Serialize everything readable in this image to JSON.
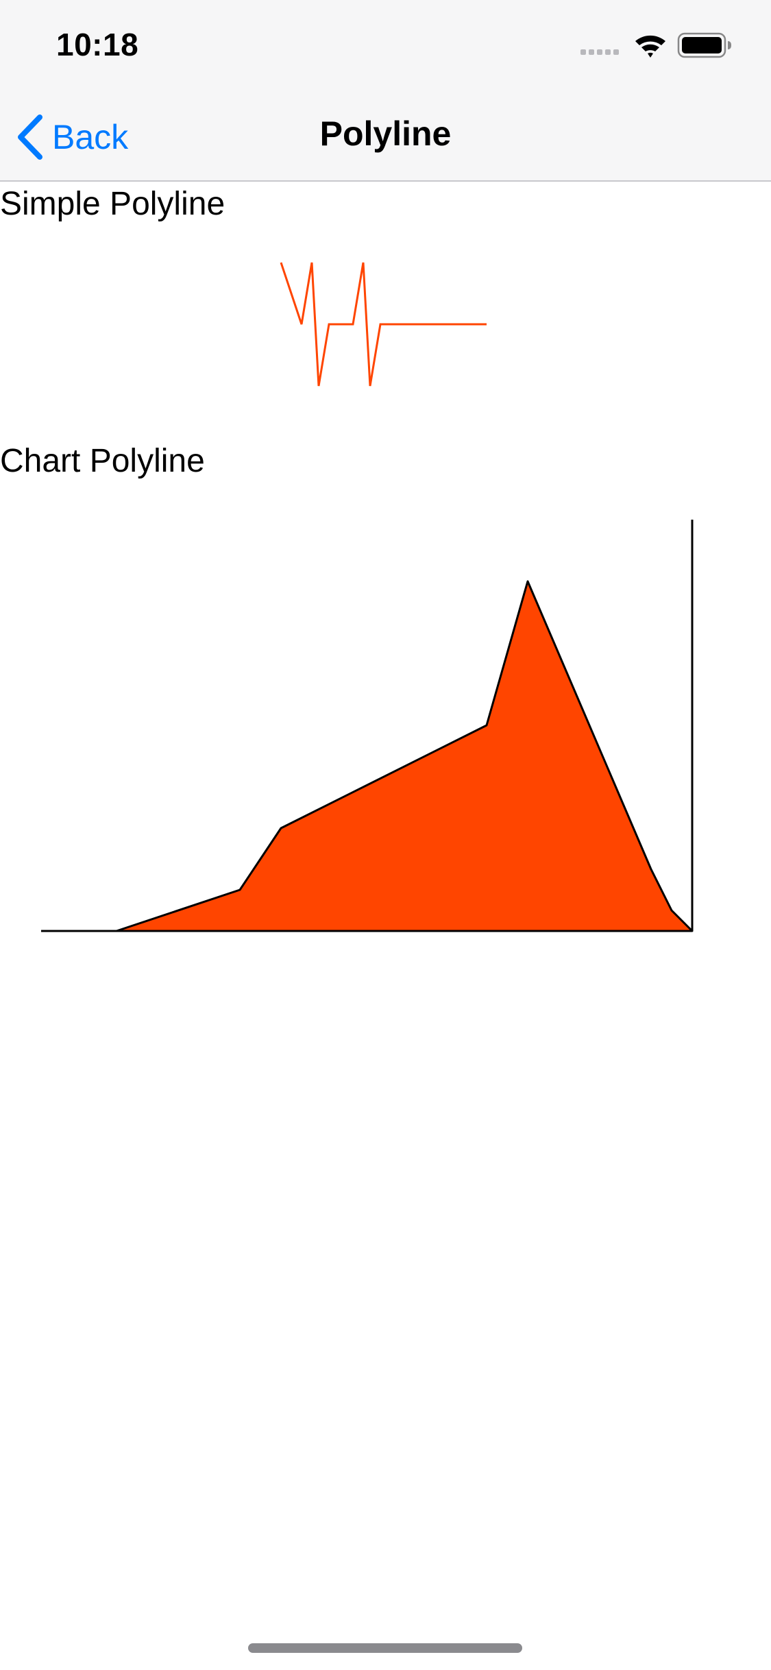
{
  "status_bar": {
    "time": "10:18"
  },
  "nav": {
    "back_label": "Back",
    "title": "Polyline"
  },
  "sections": {
    "simple_title": "Simple Polyline",
    "chart_title": "Chart Polyline"
  },
  "colors": {
    "accent": "#007aff",
    "polyline_stroke": "#ff4500",
    "chart_fill": "#ff4500",
    "chart_stroke": "#000000"
  },
  "simple_polyline_points": [
    [
      0,
      0
    ],
    [
      30,
      90
    ],
    [
      45,
      0
    ],
    [
      55,
      180
    ],
    [
      70,
      90
    ],
    [
      105,
      90
    ],
    [
      120,
      0
    ],
    [
      130,
      180
    ],
    [
      145,
      90
    ],
    [
      300,
      90
    ]
  ],
  "chart_data": {
    "type": "area",
    "points": [
      [
        0,
        0
      ],
      [
        60,
        0
      ],
      [
        240,
        60
      ],
      [
        300,
        150
      ],
      [
        600,
        300
      ],
      [
        660,
        510
      ],
      [
        840,
        90
      ],
      [
        870,
        30
      ],
      [
        900,
        0
      ]
    ],
    "xlim": [
      -120,
      900
    ],
    "ylim": [
      0,
      600
    ]
  }
}
